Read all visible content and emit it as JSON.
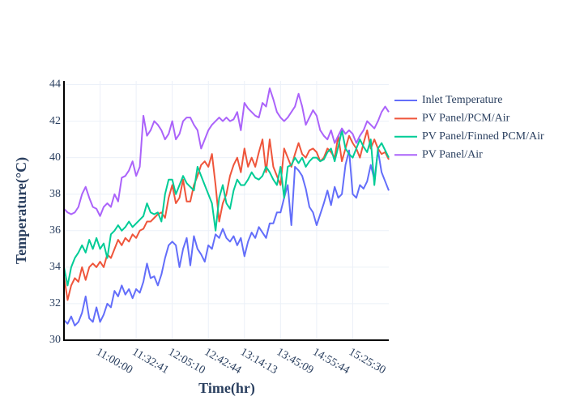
{
  "chart_data": {
    "type": "line",
    "xlabel": "Time(hr)",
    "ylabel": "Temperature(°C)",
    "categories": [
      null,
      null,
      null,
      null,
      null,
      null,
      null,
      null,
      null,
      null,
      "11:00:00",
      null,
      null,
      null,
      null,
      null,
      null,
      null,
      null,
      null,
      "11:32:41",
      null,
      null,
      null,
      null,
      null,
      null,
      null,
      null,
      null,
      "12:05:10",
      null,
      null,
      null,
      null,
      null,
      null,
      null,
      null,
      null,
      "12:42:44",
      null,
      null,
      null,
      null,
      null,
      null,
      null,
      null,
      null,
      "13:14:13",
      null,
      null,
      null,
      null,
      null,
      null,
      null,
      null,
      null,
      "13:45:09",
      null,
      null,
      null,
      null,
      null,
      null,
      null,
      null,
      null,
      "14:55:44",
      null,
      null,
      null,
      null,
      null,
      null,
      null,
      null,
      null,
      "15:25:30",
      null,
      null,
      null,
      null,
      null,
      null,
      null,
      null,
      null,
      null
    ],
    "ylim": [
      30,
      44.2
    ],
    "yticks": [
      30,
      32,
      34,
      36,
      38,
      40,
      42,
      44
    ],
    "grid": true,
    "series": [
      {
        "name": "Inlet Temperature",
        "color": "#636efa",
        "values": [
          31.1,
          30.9,
          31.3,
          30.8,
          31.0,
          31.5,
          32.4,
          31.2,
          31.0,
          31.8,
          31.0,
          31.4,
          32.0,
          31.8,
          32.7,
          32.4,
          33.0,
          32.5,
          32.8,
          32.3,
          32.8,
          32.6,
          33.2,
          34.2,
          33.4,
          33.5,
          33.0,
          33.6,
          34.5,
          35.2,
          35.4,
          35.2,
          34.0,
          35.0,
          35.6,
          34.1,
          35.7,
          35.0,
          34.7,
          34.3,
          35.2,
          35.0,
          35.8,
          35.6,
          36.1,
          35.6,
          35.4,
          35.7,
          35.2,
          35.6,
          34.6,
          35.4,
          35.9,
          35.6,
          36.2,
          35.9,
          35.6,
          36.4,
          36.4,
          37.0,
          37.0,
          37.8,
          38.5,
          36.3,
          39.5,
          39.3,
          39.0,
          38.3,
          37.3,
          37.0,
          36.3,
          36.9,
          37.5,
          38.2,
          37.4,
          38.4,
          37.8,
          38.0,
          39.6,
          40.4,
          38.0,
          37.8,
          38.5,
          38.3,
          38.7,
          39.6,
          38.8,
          40.4,
          39.2,
          38.7,
          38.2
        ]
      },
      {
        "name": "PV Panel/PCM/Air",
        "color": "#ef553b",
        "values": [
          33.5,
          32.2,
          33.0,
          33.4,
          33.2,
          34.0,
          33.3,
          34.0,
          34.2,
          34.0,
          34.3,
          34.0,
          34.7,
          34.5,
          35.0,
          35.5,
          35.2,
          35.6,
          35.4,
          35.8,
          35.6,
          36.0,
          36.1,
          36.5,
          36.5,
          36.7,
          36.9,
          37.0,
          36.7,
          37.8,
          38.5,
          37.5,
          37.8,
          38.8,
          37.6,
          37.6,
          38.5,
          39.0,
          39.6,
          39.8,
          39.5,
          40.2,
          38.5,
          36.5,
          37.5,
          38.0,
          39.0,
          39.6,
          40.0,
          39.2,
          40.5,
          39.5,
          40.0,
          39.5,
          40.3,
          41.0,
          39.2,
          41.0,
          39.5,
          39.0,
          38.5,
          40.5,
          40.0,
          39.5,
          40.2,
          40.8,
          40.2,
          40.0,
          40.4,
          40.5,
          40.3,
          39.8,
          40.0,
          40.5,
          40.3,
          40.0,
          41.2,
          39.8,
          40.5,
          41.2,
          40.8,
          40.5,
          40.0,
          40.8,
          41.5,
          40.5,
          41.0,
          40.5,
          40.2,
          40.3,
          39.9
        ]
      },
      {
        "name": "PV Panel/Finned PCM/Air",
        "color": "#00cc96",
        "values": [
          34.0,
          33.0,
          34.0,
          34.5,
          34.8,
          35.2,
          34.8,
          35.5,
          35.0,
          35.6,
          35.0,
          35.3,
          34.5,
          35.8,
          36.0,
          36.3,
          36.0,
          36.2,
          36.5,
          36.2,
          36.4,
          36.6,
          36.8,
          37.5,
          37.0,
          36.9,
          37.0,
          36.5,
          38.0,
          38.8,
          38.8,
          38.0,
          38.5,
          39.0,
          38.6,
          38.4,
          38.2,
          39.5,
          39.0,
          38.5,
          38.0,
          37.5,
          36.0,
          37.8,
          38.5,
          37.5,
          37.2,
          38.2,
          38.8,
          38.5,
          38.5,
          38.8,
          39.2,
          38.9,
          38.8,
          39.0,
          39.5,
          39.2,
          38.8,
          38.5,
          39.5,
          37.8,
          39.5,
          39.6,
          40.0,
          39.7,
          40.0,
          39.5,
          39.8,
          40.0,
          40.0,
          39.8,
          39.9,
          40.3,
          40.5,
          39.8,
          40.6,
          41.5,
          40.5,
          40.2,
          40.0,
          40.5,
          41.0,
          40.6,
          40.3,
          41.0,
          38.5,
          40.5,
          40.8,
          40.4,
          40.0
        ]
      },
      {
        "name": "PV Panel/Air",
        "color": "#ab63fa",
        "values": [
          37.2,
          37.0,
          36.9,
          37.0,
          37.3,
          38.0,
          38.4,
          37.8,
          37.3,
          37.2,
          36.8,
          37.3,
          37.5,
          37.3,
          38.0,
          37.6,
          38.9,
          39.0,
          39.3,
          39.8,
          39.0,
          39.5,
          42.3,
          41.2,
          41.5,
          42.0,
          41.8,
          41.5,
          41.0,
          41.3,
          42.0,
          41.0,
          41.3,
          42.0,
          42.2,
          42.2,
          41.8,
          41.5,
          40.5,
          41.0,
          41.5,
          41.8,
          42.0,
          42.2,
          42.0,
          42.2,
          42.0,
          42.1,
          42.5,
          41.5,
          43.0,
          42.7,
          42.5,
          42.3,
          42.2,
          43.0,
          42.8,
          43.8,
          43.2,
          42.5,
          42.2,
          42.0,
          42.2,
          42.5,
          42.8,
          43.5,
          42.8,
          41.8,
          42.2,
          42.6,
          42.3,
          41.5,
          41.2,
          41.0,
          41.5,
          40.8,
          41.2,
          41.6,
          41.3,
          41.5,
          41.3,
          40.8,
          41.2,
          41.5,
          42.0,
          41.8,
          41.6,
          42.0,
          42.5,
          42.8,
          42.5
        ]
      }
    ]
  }
}
